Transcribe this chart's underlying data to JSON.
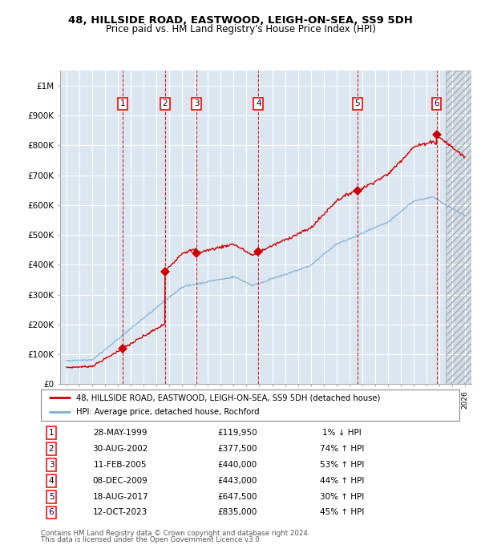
{
  "title": "48, HILLSIDE ROAD, EASTWOOD, LEIGH-ON-SEA, SS9 5DH",
  "subtitle": "Price paid vs. HM Land Registry's House Price Index (HPI)",
  "ylim": [
    0,
    1050000
  ],
  "yticks": [
    0,
    100000,
    200000,
    300000,
    400000,
    500000,
    600000,
    700000,
    800000,
    900000,
    1000000
  ],
  "ytick_labels": [
    "£0",
    "£100K",
    "£200K",
    "£300K",
    "£400K",
    "£500K",
    "£600K",
    "£700K",
    "£800K",
    "£900K",
    "£1M"
  ],
  "sales": [
    {
      "num": 1,
      "date": "28-MAY-1999",
      "year": 1999.38,
      "price": 119950,
      "pct": "1%",
      "dir": "↓"
    },
    {
      "num": 2,
      "date": "30-AUG-2002",
      "year": 2002.66,
      "price": 377500,
      "pct": "74%",
      "dir": "↑"
    },
    {
      "num": 3,
      "date": "11-FEB-2005",
      "year": 2005.12,
      "price": 440000,
      "pct": "53%",
      "dir": "↑"
    },
    {
      "num": 4,
      "date": "08-DEC-2009",
      "year": 2009.93,
      "price": 443000,
      "pct": "44%",
      "dir": "↑"
    },
    {
      "num": 5,
      "date": "18-AUG-2017",
      "year": 2017.63,
      "price": 647500,
      "pct": "30%",
      "dir": "↑"
    },
    {
      "num": 6,
      "date": "12-OCT-2023",
      "year": 2023.79,
      "price": 835000,
      "pct": "45%",
      "dir": "↑"
    }
  ],
  "legend_line1": "48, HILLSIDE ROAD, EASTWOOD, LEIGH-ON-SEA, SS9 5DH (detached house)",
  "legend_line2": "HPI: Average price, detached house, Rochford",
  "footer1": "Contains HM Land Registry data © Crown copyright and database right 2024.",
  "footer2": "This data is licensed under the Open Government Licence v3.0.",
  "hpi_color": "#7bafd4",
  "price_color": "#cc0000",
  "background_color": "#dce6f1",
  "grid_color": "#ffffff",
  "dashed_color": "#cc0000",
  "hatch_color": "#bbbbbb"
}
